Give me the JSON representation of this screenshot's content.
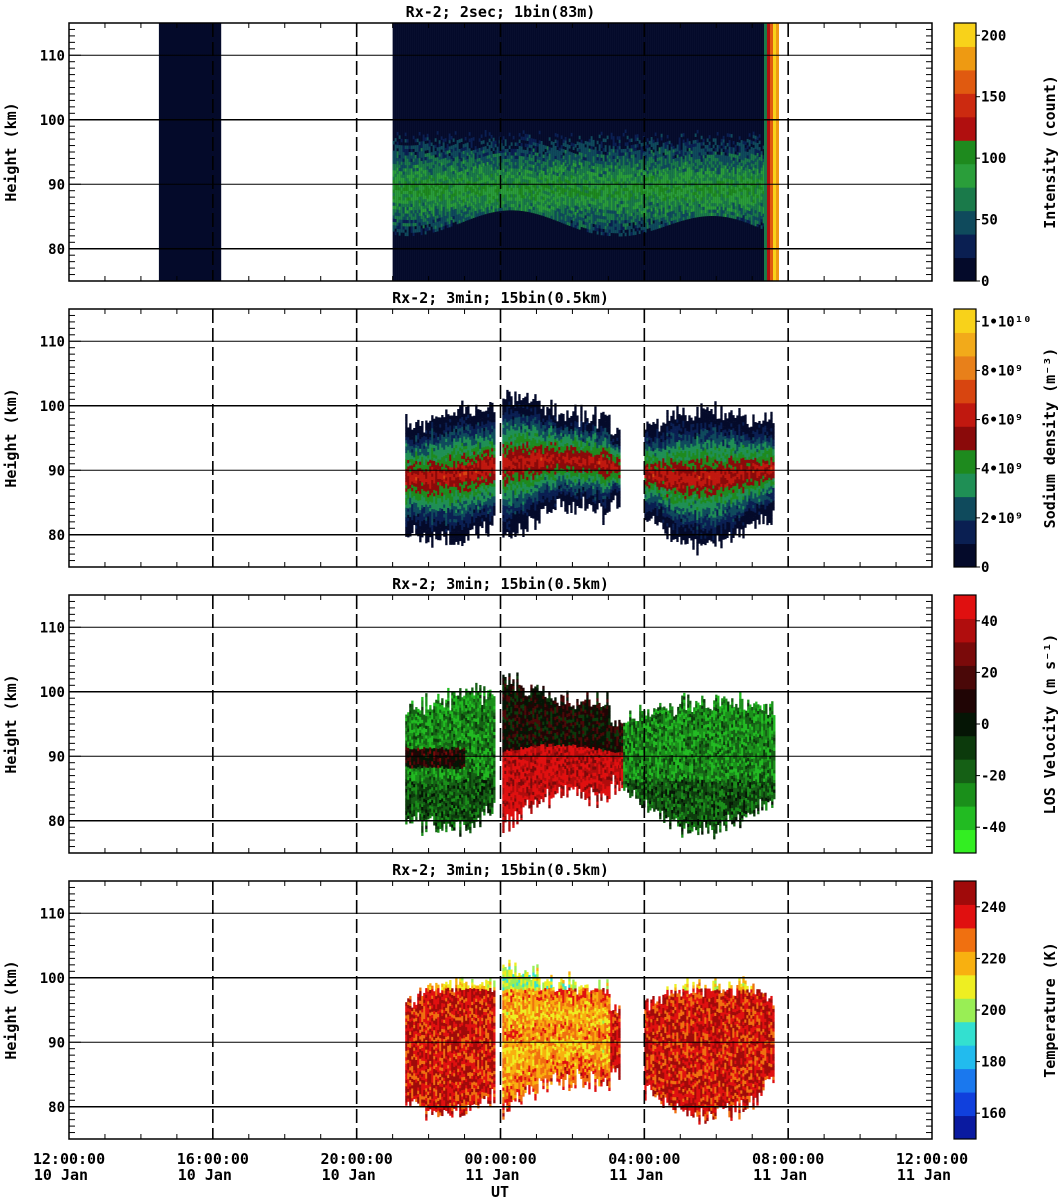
{
  "chart_data": [
    {
      "type": "heatmap",
      "title": "Rx-2;  2sec; 1bin(83m)",
      "ylabel": "Height (km)",
      "ylim": [
        75,
        115
      ],
      "yticks": [
        80,
        90,
        100,
        110
      ],
      "xlim_hours": [
        12,
        36
      ],
      "colorbar": {
        "label": "Intensity (count)",
        "range": [
          0,
          210
        ],
        "ticks": [
          {
            "v": 0,
            "label": "0"
          },
          {
            "v": 50,
            "label": "50"
          },
          {
            "v": 100,
            "label": "100"
          },
          {
            "v": 150,
            "label": "150"
          },
          {
            "v": 200,
            "label": "200"
          }
        ],
        "colors": [
          "#040a2a",
          "#0a1f52",
          "#0f4a5c",
          "#1a7a4a",
          "#2a9e3a",
          "#1e8a1e",
          "#b00f0f",
          "#cc2a10",
          "#e05a10",
          "#ee9a12",
          "#f8d21a"
        ]
      },
      "data_coverage": [
        {
          "start_h": 14.5,
          "end_h": 16.2,
          "profile": "dark"
        },
        {
          "start_h": 21.0,
          "end_h": 31.6,
          "profile": "sodium-layer"
        }
      ],
      "layer": {
        "base_km": 84,
        "peak_km": 89,
        "top_km": 97
      }
    },
    {
      "type": "heatmap",
      "title": "Rx-2; 3min; 15bin(0.5km)",
      "ylabel": "Height (km)",
      "ylim": [
        75,
        115
      ],
      "yticks": [
        80,
        90,
        100,
        110
      ],
      "colorbar": {
        "label": "Sodium density (m⁻³)",
        "range": [
          0,
          10.5
        ],
        "ticks": [
          {
            "v": 0,
            "label": "0"
          },
          {
            "v": 2,
            "label": "2•10⁹"
          },
          {
            "v": 4,
            "label": "4•10⁹"
          },
          {
            "v": 6,
            "label": "6•10⁹"
          },
          {
            "v": 8,
            "label": "8•10⁹"
          },
          {
            "v": 10,
            "label": "1•10¹⁰"
          }
        ],
        "colors": [
          "#040a2a",
          "#0a1f52",
          "#0f4a5c",
          "#1f8f55",
          "#1e8a1e",
          "#8a0a0a",
          "#c0180f",
          "#d84510",
          "#e8801a",
          "#f2aa1a",
          "#f8d21a"
        ]
      },
      "data_coverage": [
        {
          "start_h": 21.35,
          "end_h": 23.8
        },
        {
          "start_h": 24.05,
          "end_h": 27.3
        },
        {
          "start_h": 28.0,
          "end_h": 31.6
        }
      ]
    },
    {
      "type": "heatmap",
      "title": "Rx-2; 3min; 15bin(0.5km)",
      "ylabel": "Height (km)",
      "ylim": [
        75,
        115
      ],
      "yticks": [
        80,
        90,
        100,
        110
      ],
      "colorbar": {
        "label": "LOS Velocity (m s⁻¹)",
        "range": [
          -50,
          50
        ],
        "ticks": [
          {
            "v": -40,
            "label": "-40"
          },
          {
            "v": -20,
            "label": "-20"
          },
          {
            "v": 0,
            "label": "0"
          },
          {
            "v": 20,
            "label": "20"
          },
          {
            "v": 40,
            "label": "40"
          }
        ],
        "colors": [
          "#33ee22",
          "#22bb22",
          "#1a8f1a",
          "#156015",
          "#0c3a0c",
          "#051505",
          "#200505",
          "#4a0808",
          "#7a0a0a",
          "#b00d0d",
          "#e01010"
        ]
      },
      "data_coverage": [
        {
          "start_h": 21.35,
          "end_h": 23.8
        },
        {
          "start_h": 24.05,
          "end_h": 27.3
        },
        {
          "start_h": 27.3,
          "end_h": 31.6
        }
      ]
    },
    {
      "type": "heatmap",
      "title": "Rx-2; 3min; 15bin(0.5km)",
      "ylabel": "Height (km)",
      "ylim": [
        75,
        115
      ],
      "yticks": [
        80,
        90,
        100,
        110
      ],
      "colorbar": {
        "label": "Temperature (K)",
        "range": [
          150,
          250
        ],
        "ticks": [
          {
            "v": 160,
            "label": "160"
          },
          {
            "v": 180,
            "label": "180"
          },
          {
            "v": 200,
            "label": "200"
          },
          {
            "v": 220,
            "label": "220"
          },
          {
            "v": 240,
            "label": "240"
          }
        ],
        "colors": [
          "#0a1aa0",
          "#1040dd",
          "#1a78ee",
          "#22bbee",
          "#33e0d0",
          "#99ee55",
          "#eeee22",
          "#f8b010",
          "#f07010",
          "#e01010",
          "#a00a0a"
        ]
      },
      "data_coverage": [
        {
          "start_h": 21.35,
          "end_h": 23.8
        },
        {
          "start_h": 24.05,
          "end_h": 27.3
        },
        {
          "start_h": 28.0,
          "end_h": 31.6
        }
      ]
    }
  ],
  "xaxis": {
    "label": "UT",
    "ticks": [
      {
        "hours": 12,
        "time": "12:00:00",
        "date": "10 Jan"
      },
      {
        "hours": 16,
        "time": "16:00:00",
        "date": "10 Jan"
      },
      {
        "hours": 20,
        "time": "20:00:00",
        "date": "10 Jan"
      },
      {
        "hours": 24,
        "time": "00:00:00",
        "date": "11 Jan"
      },
      {
        "hours": 28,
        "time": "04:00:00",
        "date": "11 Jan"
      },
      {
        "hours": 32,
        "time": "08:00:00",
        "date": "11 Jan"
      },
      {
        "hours": 36,
        "time": "12:00:00",
        "date": "11 Jan"
      }
    ]
  }
}
